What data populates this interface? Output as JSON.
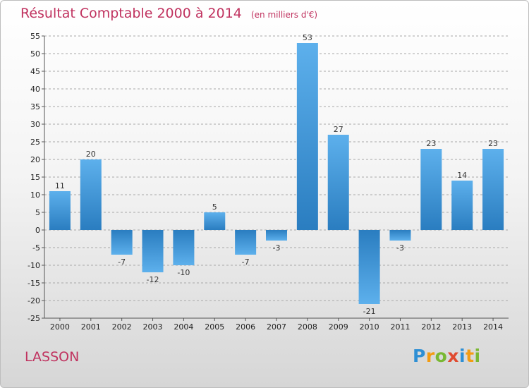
{
  "header": {
    "title": "Résultat Comptable 2000 à 2014",
    "subtitle": "(en milliers d'€)"
  },
  "footer": {
    "commune": "LASSON",
    "logo": {
      "text": "Proxiti",
      "letters": [
        {
          "ch": "P",
          "color": "#2e8fd4"
        },
        {
          "ch": "r",
          "color": "#f39c12"
        },
        {
          "ch": "o",
          "color": "#79b833"
        },
        {
          "ch": "x",
          "color": "#e04a2f"
        },
        {
          "ch": "i",
          "color": "#2e8fd4"
        },
        {
          "ch": "t",
          "color": "#f39c12"
        },
        {
          "ch": "i",
          "color": "#79b833"
        }
      ]
    }
  },
  "colors": {
    "title": "#c0325f",
    "bar_light": "#5db0ec",
    "bar_dark": "#2a7dc0",
    "grid": "#a8a8a8"
  },
  "chart_data": {
    "type": "bar",
    "categories": [
      "2000",
      "2001",
      "2002",
      "2003",
      "2004",
      "2005",
      "2006",
      "2007",
      "2008",
      "2009",
      "2010",
      "2011",
      "2012",
      "2013",
      "2014"
    ],
    "values": [
      11,
      20,
      -7,
      -12,
      -10,
      5,
      -7,
      -3,
      53,
      27,
      -21,
      -3,
      23,
      14,
      23
    ],
    "ylim": [
      -25,
      55
    ],
    "ytick_step": 5,
    "grid": "horizontal dashed",
    "legend": "none"
  }
}
